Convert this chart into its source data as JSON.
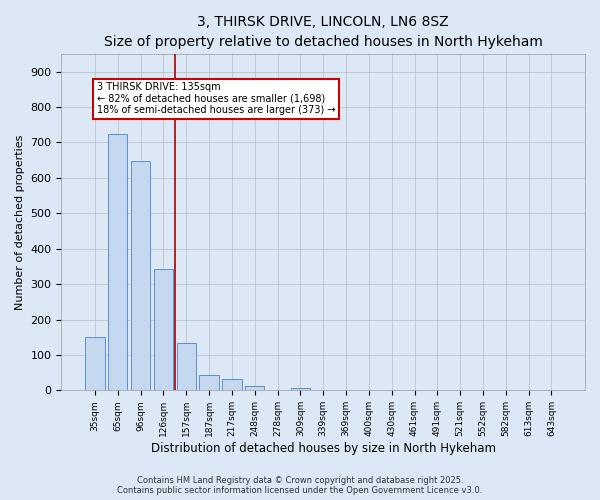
{
  "title1": "3, THIRSK DRIVE, LINCOLN, LN6 8SZ",
  "title2": "Size of property relative to detached houses in North Hykeham",
  "xlabel": "Distribution of detached houses by size in North Hykeham",
  "ylabel": "Number of detached properties",
  "categories": [
    "35sqm",
    "65sqm",
    "96sqm",
    "126sqm",
    "157sqm",
    "187sqm",
    "217sqm",
    "248sqm",
    "278sqm",
    "309sqm",
    "339sqm",
    "369sqm",
    "400sqm",
    "430sqm",
    "461sqm",
    "491sqm",
    "521sqm",
    "552sqm",
    "582sqm",
    "613sqm",
    "643sqm"
  ],
  "values": [
    150,
    725,
    648,
    343,
    133,
    42,
    32,
    12,
    0,
    7,
    0,
    0,
    0,
    0,
    0,
    0,
    0,
    0,
    0,
    0,
    0
  ],
  "bar_color": "#c5d8f0",
  "bar_edge_color": "#5b8fcc",
  "vline_color": "#aa0000",
  "annotation_line1": "3 THIRSK DRIVE: 135sqm",
  "annotation_line2": "← 82% of detached houses are smaller (1,698)",
  "annotation_line3": "18% of semi-detached houses are larger (373) →",
  "annotation_box_color": "white",
  "annotation_box_edge": "#cc0000",
  "ylim": [
    0,
    950
  ],
  "yticks": [
    0,
    100,
    200,
    300,
    400,
    500,
    600,
    700,
    800,
    900
  ],
  "grid_color": "#bbbbbb",
  "bg_color": "#dce8f5",
  "plot_bg_color": "#dce8f5",
  "footer1": "Contains HM Land Registry data © Crown copyright and database right 2025.",
  "footer2": "Contains public sector information licensed under the Open Government Licence v3.0.",
  "title_fontsize": 10,
  "subtitle_fontsize": 9
}
